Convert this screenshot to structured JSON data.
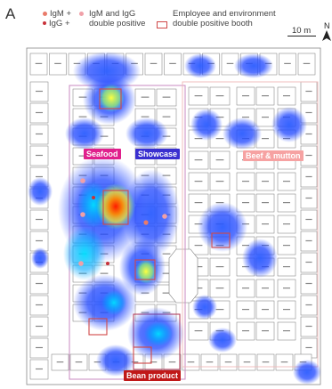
{
  "panel_letter": "A",
  "legend": {
    "igm": "IgM +",
    "igg": "IgG +",
    "double": [
      "IgM and IgG",
      "double positive"
    ],
    "booth": [
      "Employee and environment",
      "double positive booth"
    ],
    "scale": "10 m",
    "north": "N"
  },
  "zones": {
    "seafood": "Seafood",
    "showcase": "Showcase",
    "beef": "Beef & mutton",
    "bean": "Bean product"
  },
  "colors": {
    "igm": "#e97b6a",
    "igg": "#c8323a",
    "double": "#f0a0a8",
    "booth_outline": "#d04848",
    "zone_outline": "#c98ac0",
    "heat_low": "#1a3cff",
    "heat_high": "#ff1a00",
    "seafood_label": "#e0208c",
    "showcase_label": "#3a2fd0",
    "beef_label": "#f6a2a2",
    "bean_label": "#c01818"
  },
  "booth_label": "---"
}
